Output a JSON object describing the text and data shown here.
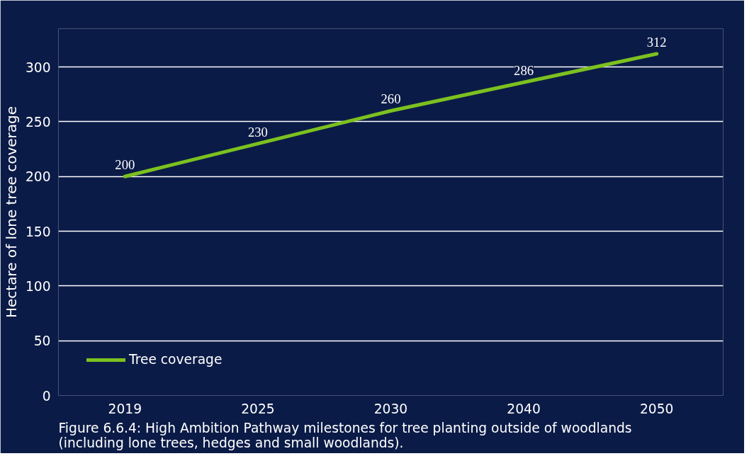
{
  "chart_data": {
    "type": "line",
    "ylabel": "Hectare of lone tree coverage",
    "categories": [
      "2019",
      "2025",
      "2030",
      "2040",
      "2050"
    ],
    "series": [
      {
        "name": "Tree coverage",
        "color": "#7cc11f",
        "values": [
          200,
          230,
          260,
          286,
          312
        ]
      }
    ],
    "ylim": [
      0,
      335
    ],
    "yticks": [
      0,
      50,
      100,
      150,
      200,
      250,
      300
    ],
    "grid": "y",
    "legend": "bottom left",
    "data_labels": true,
    "marker": "none",
    "line_style": "solid",
    "annotations": [
      "Figure 6.6.4: High Ambition Pathway milestones for tree planting outside of woodlands (including lone trees, hedges and small woodlands)."
    ]
  }
}
